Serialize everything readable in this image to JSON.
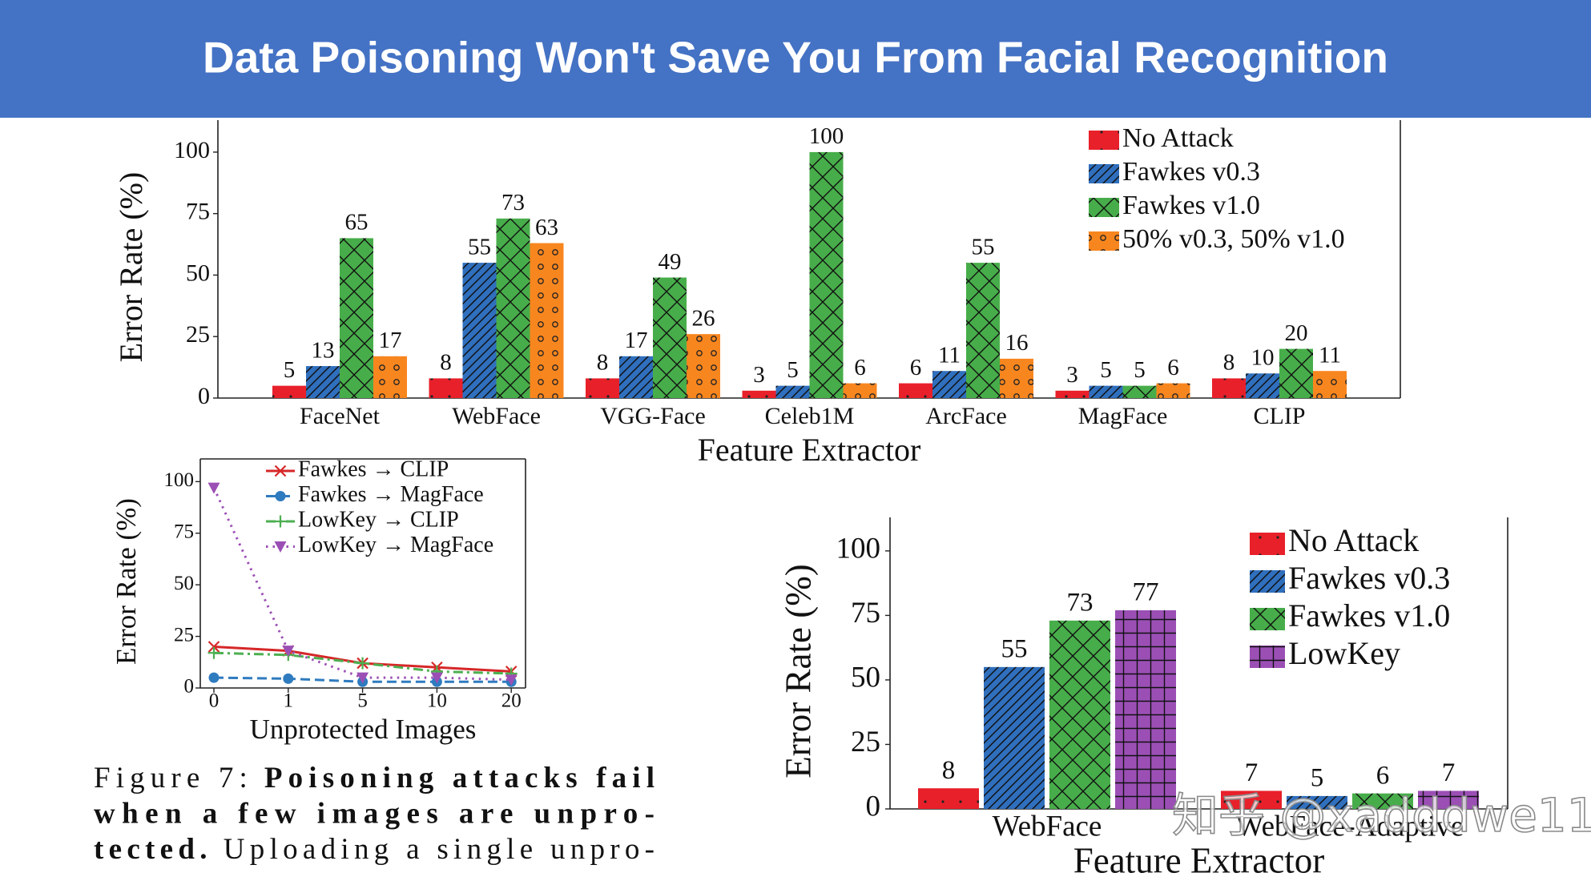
{
  "slide_title": "Data Poisoning Won't Save You From Facial Recognition",
  "chart_data": [
    {
      "type": "bar",
      "ylabel": "Error Rate (%)",
      "xlabel": "Feature Extractor",
      "categories": [
        "FaceNet",
        "WebFace",
        "VGG-Face",
        "Celeb1M",
        "ArcFace",
        "MagFace",
        "CLIP"
      ],
      "series": [
        {
          "name": "No Attack",
          "color": "#e8202a",
          "hatch": "dots",
          "values": [
            5,
            8,
            8,
            3,
            6,
            3,
            8
          ]
        },
        {
          "name": "Fawkes v0.3",
          "color": "#2f6fbd",
          "hatch": "diagonal",
          "values": [
            13,
            55,
            17,
            5,
            11,
            5,
            10
          ]
        },
        {
          "name": "Fawkes v1.0",
          "color": "#47ad4a",
          "hatch": "cross",
          "values": [
            65,
            73,
            49,
            100,
            55,
            5,
            20
          ]
        },
        {
          "name": "50% v0.3, 50% v1.0",
          "color": "#f8861f",
          "hatch": "circles",
          "values": [
            17,
            63,
            26,
            6,
            16,
            6,
            11
          ]
        }
      ],
      "ylim": [
        0,
        113
      ],
      "yticks": [
        0,
        25,
        50,
        75,
        100
      ],
      "legend": "upper right"
    },
    {
      "type": "line",
      "ylabel": "Error Rate (%)",
      "xlabel": "Unprotected Images",
      "categories": [
        "0",
        "1",
        "5",
        "10",
        "20"
      ],
      "series": [
        {
          "name": "Fawkes → CLIP",
          "color": "#d62728",
          "linestyle": "solid",
          "marker": "x",
          "values": [
            20,
            18,
            12,
            10,
            8
          ]
        },
        {
          "name": "Fawkes → MagFace",
          "color": "#2f7bbf",
          "linestyle": "dashed",
          "marker": "circle",
          "values": [
            5,
            4.5,
            3,
            3,
            3
          ]
        },
        {
          "name": "LowKey → CLIP",
          "color": "#4caf50",
          "linestyle": "dashdot",
          "marker": "plus",
          "values": [
            17,
            16,
            12,
            8,
            7
          ]
        },
        {
          "name": "LowKey → MagFace",
          "color": "#9b4fb5",
          "linestyle": "dotted",
          "marker": "triangle-down",
          "values": [
            97,
            18,
            5,
            5,
            4
          ]
        }
      ],
      "ylim": [
        0,
        111
      ],
      "yticks": [
        0,
        25,
        50,
        75,
        100
      ],
      "legend": "upper right"
    },
    {
      "type": "bar",
      "ylabel": "Error Rate (%)",
      "xlabel": "Feature Extractor",
      "categories": [
        "WebFace",
        "WebFace-Adaptive"
      ],
      "series": [
        {
          "name": "No Attack",
          "color": "#e8202a",
          "hatch": "dots",
          "values": [
            8,
            7
          ]
        },
        {
          "name": "Fawkes v0.3",
          "color": "#2f6fbd",
          "hatch": "diagonal",
          "values": [
            55,
            5
          ]
        },
        {
          "name": "Fawkes v1.0",
          "color": "#47ad4a",
          "hatch": "cross",
          "values": [
            73,
            6
          ]
        },
        {
          "name": "LowKey",
          "color": "#9b4fb5",
          "hatch": "grid",
          "values": [
            77,
            7
          ]
        }
      ],
      "ylim": [
        0,
        113
      ],
      "yticks": [
        0,
        25,
        50,
        75,
        100
      ],
      "legend": "upper right"
    }
  ],
  "caption": {
    "lines": [
      [
        {
          "text": "Figure 7:"
        },
        {
          "text": "Poisoning attacks fail",
          "bold": true
        }
      ],
      [
        {
          "text": "when a few images are unpro-",
          "bold": true
        }
      ],
      [
        {
          "text": "tected.",
          "bold": true
        },
        {
          "text": "Uploading a single unpro-"
        }
      ]
    ]
  },
  "watermark": "知乎 @xadddwe11"
}
